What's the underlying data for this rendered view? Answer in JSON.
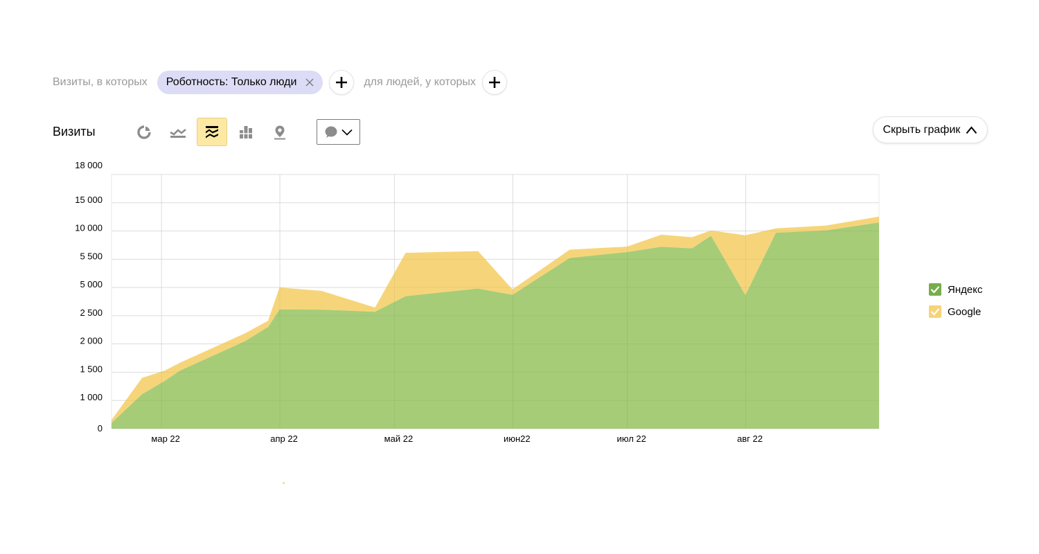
{
  "filters": {
    "visits_label": "Визиты, в которых",
    "chip_label": "Роботность: Только люди",
    "people_label": "для людей, у которых"
  },
  "toolbar": {
    "metric_title": "Визиты",
    "hide_chart_label": "Скрыть график",
    "icons": [
      "pie-chart-icon",
      "line-chart-icon",
      "stacked-area-icon",
      "stacked-bar-icon",
      "map-pin-icon",
      "comment-icon"
    ]
  },
  "colors": {
    "yandex": "#a6cc78",
    "google": "#f6d57a",
    "yandex_check": "#78ad4a",
    "google_check": "#f7d378",
    "chip_bg": "#dcdcf6",
    "active_button": "#fde9a3"
  },
  "legend": {
    "items": [
      {
        "label": "Яндекс"
      },
      {
        "label": "Google"
      }
    ]
  },
  "chart_data": {
    "type": "area",
    "stacked": true,
    "y_ticks": [
      "18 000",
      "15 000",
      "10 000",
      "5 500",
      "5 000",
      "2 500",
      "2 000",
      "1 500",
      "1 000",
      "0"
    ],
    "x_ticks": [
      "мар 22",
      "апр 22",
      "май 22",
      "июн22",
      "июл 22",
      "авг 22"
    ],
    "grid": true,
    "legend_position": "right",
    "x": [
      "2022-02-15",
      "2022-02-23",
      "2022-03-01",
      "2022-03-05",
      "2022-03-22",
      "2022-03-28",
      "2022-03-31",
      "2022-04-11",
      "2022-04-25",
      "2022-05-03",
      "2022-05-22",
      "2022-05-31",
      "2022-06-15",
      "2022-06-30",
      "2022-07-09",
      "2022-07-17",
      "2022-07-22",
      "2022-07-31",
      "2022-08-08",
      "2022-08-21",
      "2022-09-04"
    ],
    "series": [
      {
        "name": "Яндекс",
        "values": [
          200,
          1110,
          1350,
          1530,
          2050,
          2300,
          3050,
          3040,
          2850,
          4230,
          4900,
          4350,
          5700,
          6640,
          7480,
          7240,
          9230,
          4320,
          9730,
          10080,
          11500
        ]
      },
      {
        "name": "Google",
        "values": [
          110,
          290,
          180,
          140,
          140,
          110,
          1950,
          1660,
          370,
          2290,
          1900,
          480,
          1330,
          870,
          1930,
          1770,
          860,
          5000,
          730,
          880,
          1060
        ]
      }
    ]
  }
}
